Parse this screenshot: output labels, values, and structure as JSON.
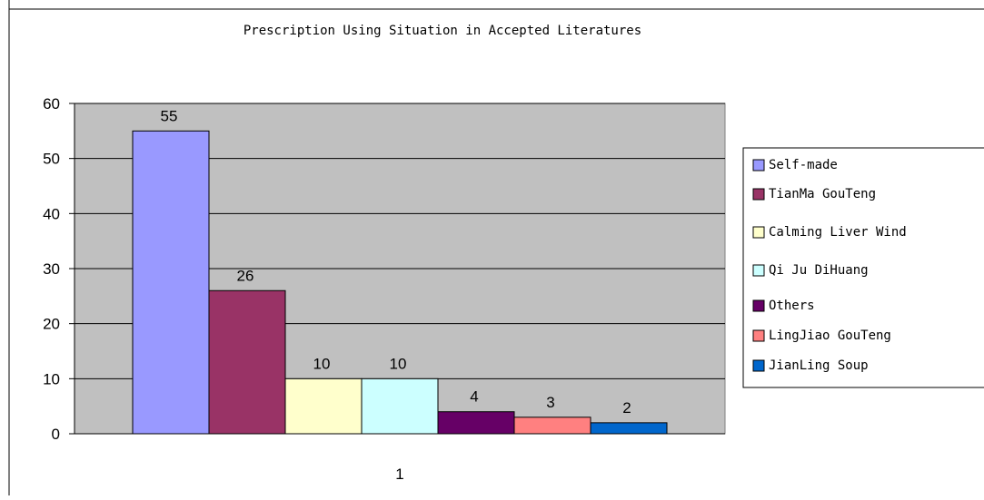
{
  "chart_data": {
    "type": "bar",
    "title": "Prescription Using Situation in Accepted Literatures",
    "categories": [
      "1"
    ],
    "series": [
      {
        "name": "Self-made",
        "values": [
          55
        ],
        "color": "#9999FF"
      },
      {
        "name": "TianMa GouTeng",
        "values": [
          26
        ],
        "color": "#993366"
      },
      {
        "name": "Calming Liver Wind",
        "values": [
          10
        ],
        "color": "#FFFFCC"
      },
      {
        "name": "Qi Ju DiHuang",
        "values": [
          10
        ],
        "color": "#CCFFFF"
      },
      {
        "name": "Others",
        "values": [
          4
        ],
        "color": "#660066"
      },
      {
        "name": "LingJiao GouTeng",
        "values": [
          3
        ],
        "color": "#FF8080"
      },
      {
        "name": "JianLing Soup",
        "values": [
          2
        ],
        "color": "#0066CC"
      }
    ],
    "ylim": [
      0,
      60
    ],
    "yticks": [
      0,
      10,
      20,
      30,
      40,
      50,
      60
    ],
    "xlabel": "",
    "ylabel": "",
    "grid": true,
    "plot_background": "#C0C0C0",
    "legend_position": "right",
    "data_labels": true
  }
}
